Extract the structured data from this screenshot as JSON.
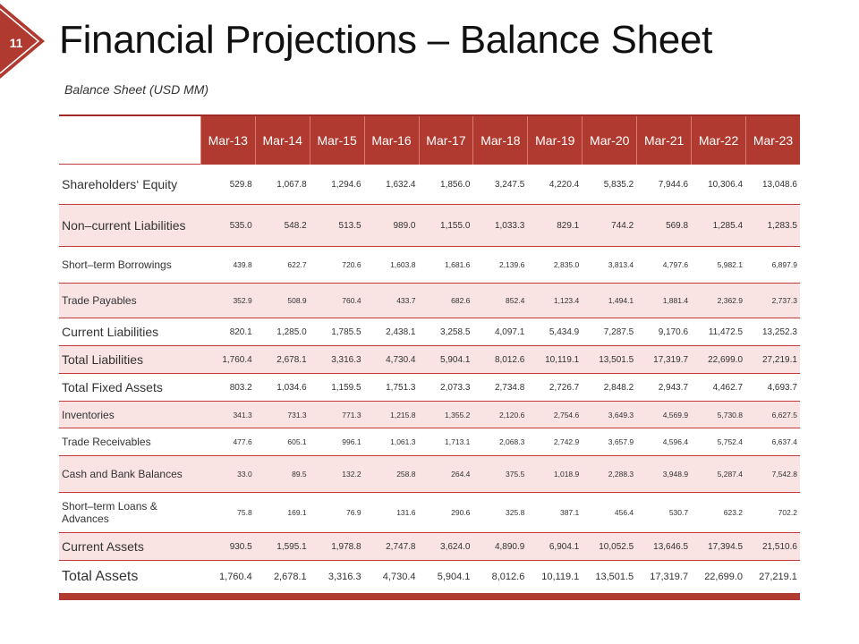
{
  "slide": {
    "number": "11",
    "title": "Financial Projections – Balance Sheet",
    "subtitle": "Balance Sheet (USD MM)",
    "accent_color": "#b03a30"
  },
  "table": {
    "columns": [
      "Mar-13",
      "Mar-14",
      "Mar-15",
      "Mar-16",
      "Mar-17",
      "Mar-18",
      "Mar-19",
      "Mar-20",
      "Mar-21",
      "Mar-22",
      "Mar-23"
    ],
    "rows": [
      {
        "label": "Shareholders‘ Equity",
        "values": [
          "529.8",
          "1,067.8",
          "1,294.6",
          "1,632.4",
          "1,856.0",
          "3,247.5",
          "4,220.4",
          "5,835.2",
          "7,944.6",
          "10,306.4",
          "13,048.6"
        ]
      },
      {
        "label": "Non–current Liabilities",
        "values": [
          "535.0",
          "548.2",
          "513.5",
          "989.0",
          "1,155.0",
          "1,033.3",
          "829.1",
          "744.2",
          "569.8",
          "1,285.4",
          "1,283.5"
        ]
      },
      {
        "label": "Short–term Borrowings",
        "values": [
          "439.8",
          "622.7",
          "720.6",
          "1,603.8",
          "1,681.6",
          "2,139.6",
          "2,835.0",
          "3,813.4",
          "4,797.6",
          "5,982.1",
          "6,897.9"
        ]
      },
      {
        "label": "Trade Payables",
        "values": [
          "352.9",
          "508.9",
          "760.4",
          "433.7",
          "682.6",
          "852.4",
          "1,123.4",
          "1,494.1",
          "1,881.4",
          "2,362.9",
          "2,737.3"
        ]
      },
      {
        "label": "Current Liabilities",
        "values": [
          "820.1",
          "1,285.0",
          "1,785.5",
          "2,438.1",
          "3,258.5",
          "4,097.1",
          "5,434.9",
          "7,287.5",
          "9,170.6",
          "11,472.5",
          "13,252.3"
        ]
      },
      {
        "label": "Total Liabilities",
        "values": [
          "1,760.4",
          "2,678.1",
          "3,316.3",
          "4,730.4",
          "5,904.1",
          "8,012.6",
          "10,119.1",
          "13,501.5",
          "17,319.7",
          "22,699.0",
          "27,219.1"
        ]
      },
      {
        "label": "Total Fixed Assets",
        "values": [
          "803.2",
          "1,034.6",
          "1,159.5",
          "1,751.3",
          "2,073.3",
          "2,734.8",
          "2,726.7",
          "2,848.2",
          "2,943.7",
          "4,462.7",
          "4,693.7"
        ]
      },
      {
        "label": "Inventories",
        "values": [
          "341.3",
          "731.3",
          "771.3",
          "1,215.8",
          "1,355.2",
          "2,120.6",
          "2,754.6",
          "3,649.3",
          "4,569.9",
          "5,730.8",
          "6,627.5"
        ]
      },
      {
        "label": "Trade Receivables",
        "values": [
          "477.6",
          "605.1",
          "996.1",
          "1,061.3",
          "1,713.1",
          "2,068.3",
          "2,742.9",
          "3,657.9",
          "4,596.4",
          "5,752.4",
          "6,637.4"
        ]
      },
      {
        "label": "Cash and Bank Balances",
        "values": [
          "33.0",
          "89.5",
          "132.2",
          "258.8",
          "264.4",
          "375.5",
          "1,018.9",
          "2,288.3",
          "3,948.9",
          "5,287.4",
          "7,542.8"
        ]
      },
      {
        "label": "Short–term Loans & Advances",
        "values": [
          "75.8",
          "169.1",
          "76.9",
          "131.6",
          "290.6",
          "325.8",
          "387.1",
          "456.4",
          "530.7",
          "623.2",
          "702.2"
        ]
      },
      {
        "label": "Current Assets",
        "values": [
          "930.5",
          "1,595.1",
          "1,978.8",
          "2,747.8",
          "3,624.0",
          "4,890.9",
          "6,904.1",
          "10,052.5",
          "13,646.5",
          "17,394.5",
          "21,510.6"
        ]
      },
      {
        "label": "Total Assets",
        "values": [
          "1,760.4",
          "2,678.1",
          "3,316.3",
          "4,730.4",
          "5,904.1",
          "8,012.6",
          "10,119.1",
          "13,501.5",
          "17,319.7",
          "22,699.0",
          "27,219.1"
        ]
      }
    ]
  }
}
